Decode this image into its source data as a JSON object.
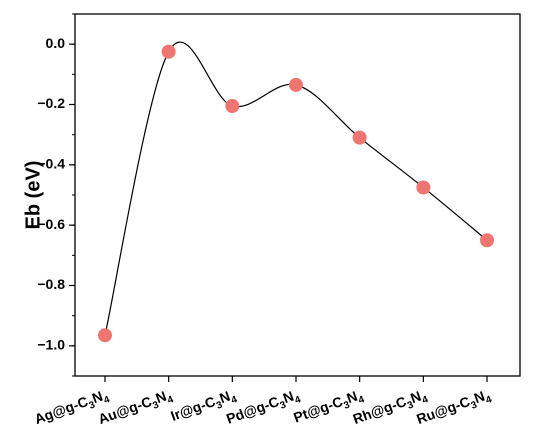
{
  "chart_data": {
    "type": "line",
    "ylabel": "Eb (eV)",
    "xlabel": "",
    "categories": [
      {
        "base": "Ag@g-C",
        "s1": "3",
        "mid": "N",
        "s2": "4"
      },
      {
        "base": "Au@g-C",
        "s1": "3",
        "mid": "N",
        "s2": "4"
      },
      {
        "base": "Ir@g-C",
        "s1": "3",
        "mid": "N",
        "s2": "4"
      },
      {
        "base": "Pd@g-C",
        "s1": "3",
        "mid": "N",
        "s2": "4"
      },
      {
        "base": "Pt@g-C",
        "s1": "3",
        "mid": "N",
        "s2": "4"
      },
      {
        "base": "Rh@g-C",
        "s1": "3",
        "mid": "N",
        "s2": "4"
      },
      {
        "base": "Ru@g-C",
        "s1": "3",
        "mid": "N",
        "s2": "4"
      }
    ],
    "values": [
      -0.965,
      -0.025,
      -0.205,
      -0.135,
      -0.31,
      -0.475,
      -0.65
    ],
    "ylim": [
      -1.1,
      0.1
    ],
    "yticks": [
      "0.0",
      "-0.2",
      "-0.4",
      "-0.6",
      "-0.8",
      "-1.0"
    ],
    "marker_color": "#f07470",
    "line_color": "#000000",
    "smooth": true,
    "grid": false
  }
}
